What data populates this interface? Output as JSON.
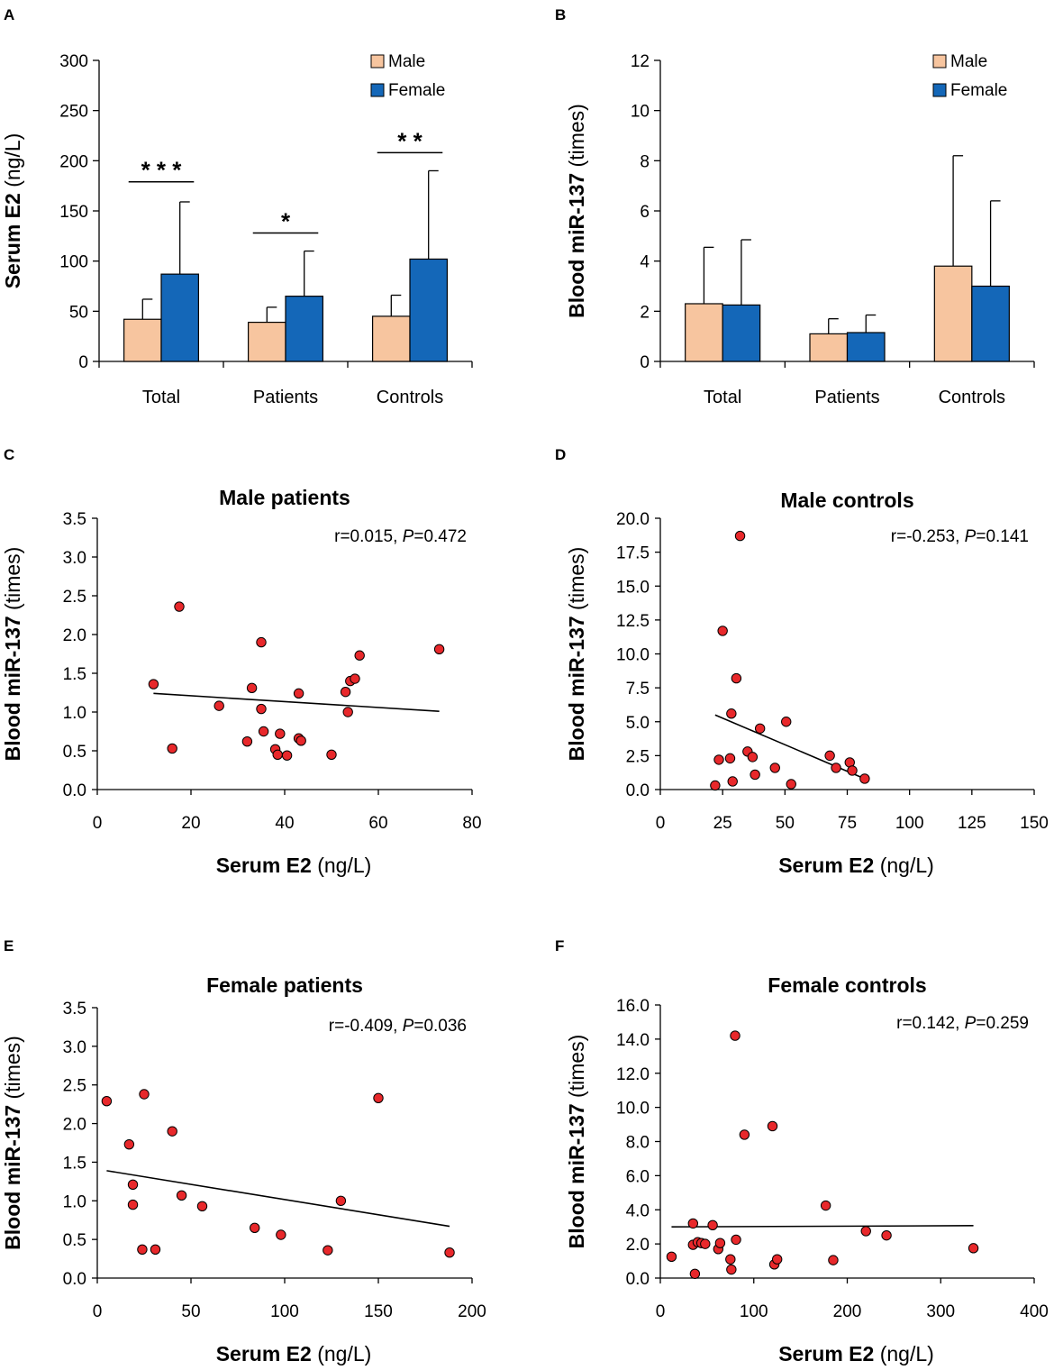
{
  "colors": {
    "male": "#f7c59f",
    "female": "#1467b8",
    "point": "#e8282b",
    "ink": "#000000"
  },
  "chart_data": [
    {
      "id": "A",
      "type": "bar",
      "panel_label": "A",
      "title": "",
      "xlabel": "",
      "ylabel_bold": "Serum E2",
      "ylabel_rest": " (ng/L)",
      "categories": [
        "Total",
        "Patients",
        "Controls"
      ],
      "series": [
        {
          "name": "Male",
          "color_key": "male",
          "values": [
            42,
            39,
            45
          ],
          "errors": [
            20,
            15,
            21
          ]
        },
        {
          "name": "Female",
          "color_key": "female",
          "values": [
            87,
            65,
            102
          ],
          "errors": [
            72,
            45,
            88
          ]
        }
      ],
      "ylim": [
        0,
        300
      ],
      "yticks": [
        0,
        50,
        100,
        150,
        200,
        250,
        300
      ],
      "legend_position": "top-right",
      "significance": [
        {
          "category": 0,
          "label": "***",
          "y": 179
        },
        {
          "category": 1,
          "label": "*",
          "y": 128
        },
        {
          "category": 2,
          "label": "**",
          "y": 208
        }
      ]
    },
    {
      "id": "B",
      "type": "bar",
      "panel_label": "B",
      "title": "",
      "xlabel": "",
      "ylabel_bold": "Blood miR-137",
      "ylabel_rest": " (times)",
      "categories": [
        "Total",
        "Patients",
        "Controls"
      ],
      "series": [
        {
          "name": "Male",
          "color_key": "male",
          "values": [
            2.3,
            1.1,
            3.8
          ],
          "errors": [
            2.25,
            0.6,
            4.4
          ]
        },
        {
          "name": "Female",
          "color_key": "female",
          "values": [
            2.25,
            1.15,
            3.0
          ],
          "errors": [
            2.6,
            0.7,
            3.4
          ]
        }
      ],
      "ylim": [
        0,
        12
      ],
      "yticks": [
        0,
        2,
        4,
        6,
        8,
        10,
        12
      ],
      "legend_position": "top-right",
      "significance": []
    },
    {
      "id": "C",
      "type": "scatter",
      "panel_label": "C",
      "title": "Male patients",
      "xlabel_bold": "Serum E2",
      "xlabel_rest": " (ng/L)",
      "ylabel_bold": "Blood miR-137",
      "ylabel_rest": " (times)",
      "stat_prefix": "r=0.015, ",
      "stat_p": "P",
      "stat_suffix": "=0.472",
      "xlim": [
        0,
        80
      ],
      "xticks": [
        "0",
        "20",
        "40",
        "60",
        "80"
      ],
      "xtick_values": [
        0,
        20,
        40,
        60,
        80
      ],
      "ylim": [
        0,
        3.5
      ],
      "yticks": [
        "0.0",
        "0.5",
        "1.0",
        "1.5",
        "2.0",
        "2.5",
        "3.0",
        "3.5"
      ],
      "ytick_values": [
        0,
        0.5,
        1.0,
        1.5,
        2.0,
        2.5,
        3.0,
        3.5
      ],
      "points": [
        [
          12,
          1.36
        ],
        [
          16,
          0.53
        ],
        [
          17.5,
          2.36
        ],
        [
          26,
          1.08
        ],
        [
          32,
          0.62
        ],
        [
          33,
          1.31
        ],
        [
          35,
          1.9
        ],
        [
          35,
          1.04
        ],
        [
          35.5,
          0.75
        ],
        [
          38,
          0.52
        ],
        [
          38.5,
          0.45
        ],
        [
          39,
          0.72
        ],
        [
          40.5,
          0.44
        ],
        [
          43,
          1.24
        ],
        [
          43,
          0.66
        ],
        [
          43.5,
          0.63
        ],
        [
          50,
          0.45
        ],
        [
          53,
          1.26
        ],
        [
          53.5,
          1.0
        ],
        [
          54,
          1.4
        ],
        [
          55,
          1.43
        ],
        [
          56,
          1.73
        ],
        [
          73,
          1.81
        ]
      ],
      "fit": [
        [
          12,
          1.24
        ],
        [
          73,
          1.01
        ]
      ]
    },
    {
      "id": "D",
      "type": "scatter",
      "panel_label": "D",
      "title": "Male controls",
      "xlabel_bold": "Serum E2",
      "xlabel_rest": " (ng/L)",
      "ylabel_bold": "Blood miR-137",
      "ylabel_rest": " (times)",
      "stat_prefix": "r=-0.253, ",
      "stat_p": "P",
      "stat_suffix": "=0.141",
      "xlim": [
        0,
        150
      ],
      "xticks": [
        "0",
        "25",
        "50",
        "75",
        "100",
        "125",
        "150"
      ],
      "xtick_values": [
        0,
        25,
        50,
        75,
        100,
        125,
        150
      ],
      "ylim": [
        0,
        20
      ],
      "yticks": [
        "0.0",
        "2.5",
        "5.0",
        "7.5",
        "10.0",
        "12.5",
        "15.0",
        "17.5",
        "20.0"
      ],
      "ytick_values": [
        0,
        2.5,
        5,
        7.5,
        10,
        12.5,
        15,
        17.5,
        20
      ],
      "points": [
        [
          22,
          0.3
        ],
        [
          23.5,
          2.2
        ],
        [
          25,
          11.7
        ],
        [
          28,
          2.3
        ],
        [
          28.5,
          5.6
        ],
        [
          29,
          0.6
        ],
        [
          30.5,
          8.2
        ],
        [
          32,
          18.7
        ],
        [
          35,
          2.8
        ],
        [
          37,
          2.4
        ],
        [
          38,
          1.1
        ],
        [
          40,
          4.5
        ],
        [
          46,
          1.6
        ],
        [
          50.5,
          5.0
        ],
        [
          52.5,
          0.4
        ],
        [
          68,
          2.5
        ],
        [
          70.5,
          1.6
        ],
        [
          76,
          2.0
        ],
        [
          77,
          1.4
        ],
        [
          82,
          0.8
        ]
      ],
      "fit": [
        [
          22,
          5.5
        ],
        [
          82,
          0.8
        ]
      ]
    },
    {
      "id": "E",
      "type": "scatter",
      "panel_label": "E",
      "title": "Female patients",
      "xlabel_bold": "Serum E2",
      "xlabel_rest": " (ng/L)",
      "ylabel_bold": "Blood miR-137",
      "ylabel_rest": " (times)",
      "stat_prefix": "r=-0.409, ",
      "stat_p": "P",
      "stat_suffix": "=0.036",
      "xlim": [
        0,
        200
      ],
      "xticks": [
        "0",
        "50",
        "100",
        "150",
        "200"
      ],
      "xtick_values": [
        0,
        50,
        100,
        150,
        200
      ],
      "ylim": [
        0,
        3.5
      ],
      "yticks": [
        "0.0",
        "0.5",
        "1.0",
        "1.5",
        "2.0",
        "2.5",
        "3.0",
        "3.5"
      ],
      "ytick_values": [
        0,
        0.5,
        1.0,
        1.5,
        2.0,
        2.5,
        3.0,
        3.5
      ],
      "points": [
        [
          5,
          2.29
        ],
        [
          17,
          1.73
        ],
        [
          19,
          1.21
        ],
        [
          19,
          0.95
        ],
        [
          25,
          2.38
        ],
        [
          24,
          0.37
        ],
        [
          31,
          0.37
        ],
        [
          40,
          1.9
        ],
        [
          45,
          1.07
        ],
        [
          56,
          0.93
        ],
        [
          84,
          0.65
        ],
        [
          98,
          0.56
        ],
        [
          123,
          0.36
        ],
        [
          130,
          1.0
        ],
        [
          150,
          2.33
        ],
        [
          188,
          0.33
        ]
      ],
      "fit": [
        [
          5,
          1.39
        ],
        [
          188,
          0.67
        ]
      ]
    },
    {
      "id": "F",
      "type": "scatter",
      "panel_label": "F",
      "title": "Female controls",
      "xlabel_bold": "Serum E2",
      "xlabel_rest": " (ng/L)",
      "ylabel_bold": "Blood miR-137",
      "ylabel_rest": " (times)",
      "stat_prefix": "r=0.142, ",
      "stat_p": "P",
      "stat_suffix": "=0.259",
      "xlim": [
        0,
        400
      ],
      "xticks": [
        "0",
        "100",
        "200",
        "300",
        "400"
      ],
      "xtick_values": [
        0,
        100,
        200,
        300,
        400
      ],
      "ylim": [
        0,
        16
      ],
      "yticks": [
        "0.0",
        "2.0",
        "4.0",
        "6.0",
        "8.0",
        "10.0",
        "12.0",
        "14.0",
        "16.0"
      ],
      "ytick_values": [
        0,
        2,
        4,
        6,
        8,
        10,
        12,
        14,
        16
      ],
      "points": [
        [
          12,
          1.25
        ],
        [
          35,
          3.2
        ],
        [
          35,
          1.95
        ],
        [
          37,
          0.25
        ],
        [
          40,
          2.1
        ],
        [
          44,
          2.05
        ],
        [
          48,
          2.0
        ],
        [
          56,
          3.1
        ],
        [
          62,
          1.7
        ],
        [
          64,
          2.05
        ],
        [
          75,
          1.1
        ],
        [
          76,
          0.5
        ],
        [
          80,
          14.2
        ],
        [
          81,
          2.25
        ],
        [
          90,
          8.4
        ],
        [
          120,
          8.9
        ],
        [
          122,
          0.8
        ],
        [
          125,
          1.1
        ],
        [
          177,
          4.25
        ],
        [
          185,
          1.05
        ],
        [
          220,
          2.75
        ],
        [
          242,
          2.5
        ],
        [
          335,
          1.75
        ]
      ],
      "fit": [
        [
          12,
          3.0
        ],
        [
          335,
          3.07
        ]
      ]
    }
  ]
}
